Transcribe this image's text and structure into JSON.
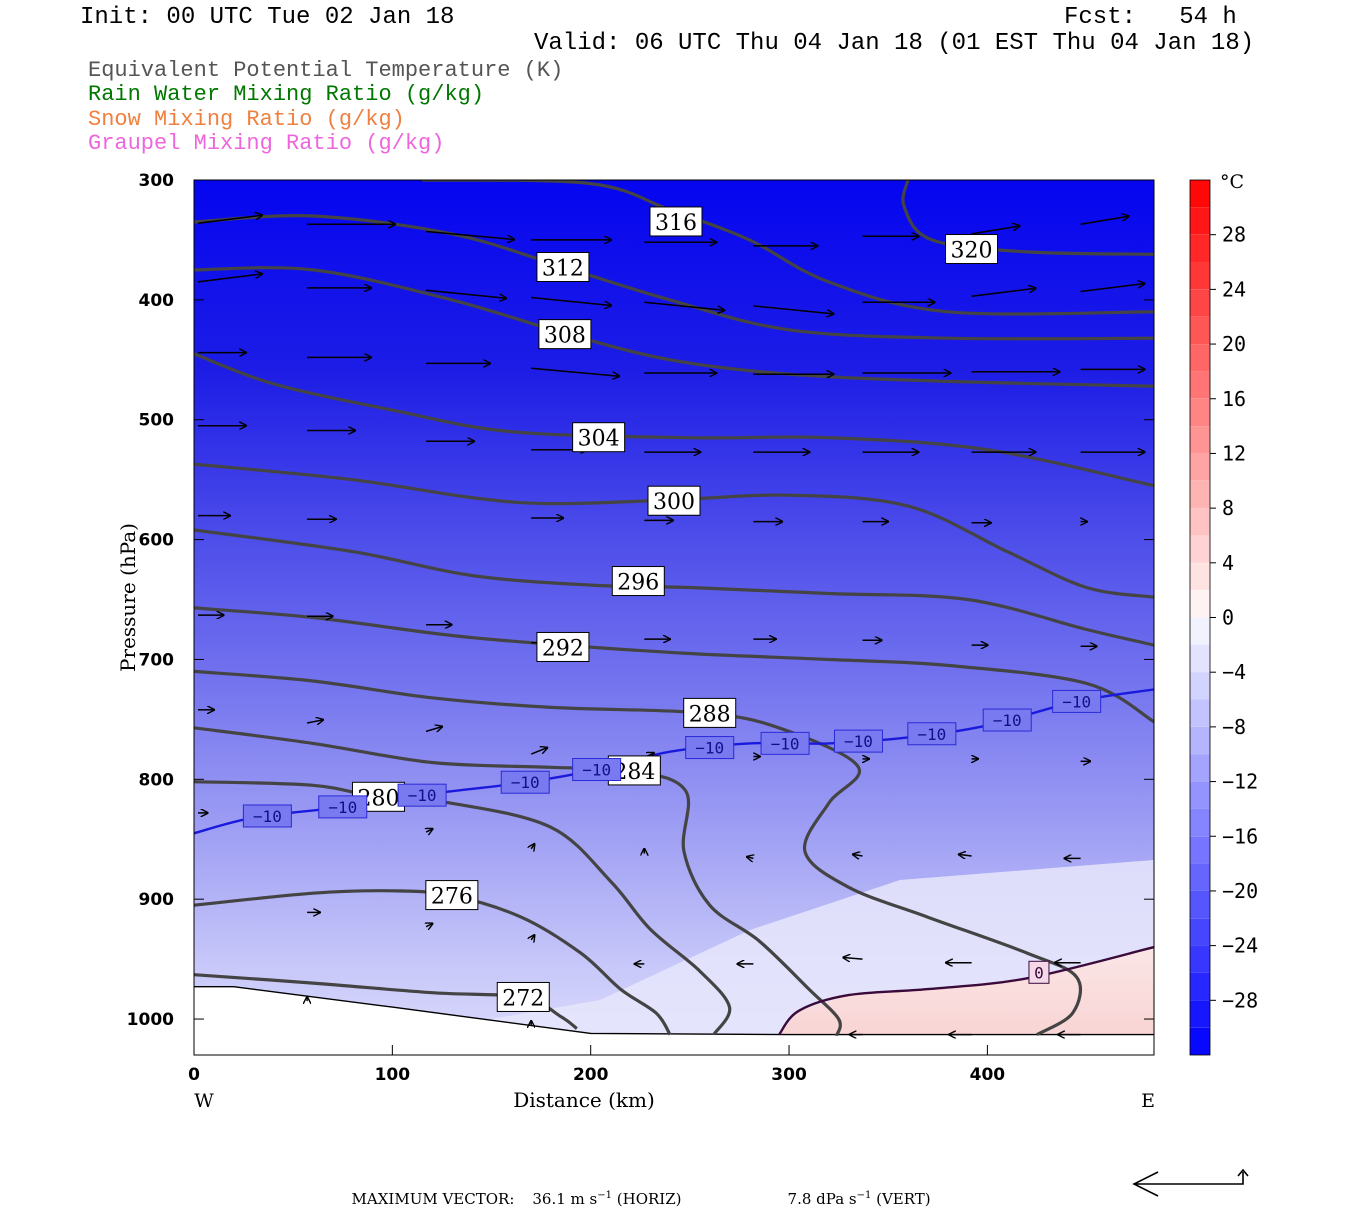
{
  "header": {
    "init": "Init: 00 UTC Tue 02 Jan 18",
    "fcst": "Fcst:   54 h",
    "valid": "Valid: 06 UTC Thu 04 Jan 18 (01 EST Thu 04 Jan 18)"
  },
  "fields": [
    {
      "label": "Equivalent Potential Temperature (K)",
      "color": "#555555"
    },
    {
      "label": "Rain Water Mixing Ratio (g/kg)",
      "color": "#007700"
    },
    {
      "label": "Snow Mixing Ratio (g/kg)",
      "color": "#f08040"
    },
    {
      "label": "Graupel Mixing Ratio (g/kg)",
      "color": "#ee66dd"
    }
  ],
  "chart_data": {
    "type": "cross-section",
    "xlabel": "Distance (km)",
    "ylabel": "Pressure (hPa)",
    "xlim": [
      0,
      484
    ],
    "ylim": [
      1030,
      300
    ],
    "x_ticks": [
      0,
      100,
      200,
      300,
      400
    ],
    "y_ticks": [
      300,
      400,
      500,
      600,
      700,
      800,
      900,
      1000
    ],
    "x_end_labels": {
      "left": "W",
      "right": "E"
    },
    "colorbar": {
      "unit": "°C",
      "tick_labels": [
        "28",
        "24",
        "20",
        "16",
        "12",
        "8",
        "4",
        "0",
        "−4",
        "−8",
        "−12",
        "−16",
        "−20",
        "−24",
        "−28"
      ],
      "tick_values": [
        28,
        24,
        20,
        16,
        12,
        8,
        4,
        0,
        -4,
        -8,
        -12,
        -16,
        -20,
        -24,
        -28
      ],
      "range": [
        -32,
        32
      ]
    },
    "theta_e_contours": [
      {
        "label": "316",
        "label_x": 243,
        "label_p": 335,
        "points": [
          [
            115,
            300
          ],
          [
            200,
            303
          ],
          [
            240,
            325
          ],
          [
            280,
            350
          ],
          [
            320,
            385
          ],
          [
            380,
            410
          ],
          [
            484,
            410
          ]
        ]
      },
      {
        "label": "320",
        "label_x": 392,
        "label_p": 358,
        "points": [
          [
            360,
            300
          ],
          [
            358,
            322
          ],
          [
            372,
            350
          ],
          [
            420,
            360
          ],
          [
            484,
            362
          ]
        ]
      },
      {
        "label": "312",
        "label_x": 186,
        "label_p": 373,
        "points": [
          [
            0,
            335
          ],
          [
            60,
            330
          ],
          [
            130,
            345
          ],
          [
            185,
            372
          ],
          [
            240,
            400
          ],
          [
            300,
            425
          ],
          [
            380,
            432
          ],
          [
            484,
            432
          ]
        ]
      },
      {
        "label": "308",
        "label_x": 187,
        "label_p": 429,
        "points": [
          [
            0,
            375
          ],
          [
            60,
            375
          ],
          [
            130,
            400
          ],
          [
            187,
            428
          ],
          [
            240,
            450
          ],
          [
            300,
            462
          ],
          [
            380,
            468
          ],
          [
            484,
            472
          ]
        ]
      },
      {
        "label": "304",
        "label_x": 204,
        "label_p": 515,
        "points": [
          [
            0,
            445
          ],
          [
            40,
            470
          ],
          [
            100,
            492
          ],
          [
            160,
            510
          ],
          [
            250,
            515
          ],
          [
            320,
            515
          ],
          [
            400,
            525
          ],
          [
            484,
            555
          ]
        ]
      },
      {
        "label": "300",
        "label_x": 242,
        "label_p": 568,
        "points": [
          [
            0,
            537
          ],
          [
            80,
            550
          ],
          [
            140,
            565
          ],
          [
            180,
            570
          ],
          [
            240,
            567
          ],
          [
            300,
            563
          ],
          [
            360,
            572
          ],
          [
            410,
            610
          ],
          [
            450,
            640
          ],
          [
            484,
            648
          ]
        ]
      },
      {
        "label": "296",
        "label_x": 224,
        "label_p": 635,
        "points": [
          [
            0,
            592
          ],
          [
            80,
            610
          ],
          [
            140,
            630
          ],
          [
            200,
            638
          ],
          [
            250,
            640
          ],
          [
            320,
            645
          ],
          [
            390,
            650
          ],
          [
            450,
            675
          ],
          [
            484,
            688
          ]
        ]
      },
      {
        "label": "292",
        "label_x": 186,
        "label_p": 690,
        "points": [
          [
            0,
            657
          ],
          [
            60,
            665
          ],
          [
            130,
            680
          ],
          [
            186,
            688
          ],
          [
            250,
            695
          ],
          [
            320,
            700
          ],
          [
            380,
            705
          ],
          [
            450,
            720
          ],
          [
            484,
            752
          ]
        ]
      },
      {
        "label": "288",
        "label_x": 260,
        "label_p": 745,
        "points": [
          [
            0,
            710
          ],
          [
            60,
            718
          ],
          [
            120,
            732
          ],
          [
            180,
            740
          ],
          [
            260,
            745
          ],
          [
            300,
            760
          ],
          [
            335,
            790
          ],
          [
            320,
            820
          ],
          [
            308,
            860
          ],
          [
            330,
            890
          ],
          [
            370,
            915
          ],
          [
            420,
            945
          ],
          [
            445,
            965
          ],
          [
            443,
            995
          ],
          [
            425,
            1013
          ]
        ]
      },
      {
        "label": "284",
        "label_x": 222,
        "label_p": 793,
        "points": [
          [
            0,
            757
          ],
          [
            60,
            770
          ],
          [
            120,
            786
          ],
          [
            180,
            790
          ],
          [
            222,
            793
          ],
          [
            248,
            810
          ],
          [
            247,
            860
          ],
          [
            260,
            905
          ],
          [
            285,
            935
          ],
          [
            310,
            975
          ],
          [
            325,
            1000
          ],
          [
            324,
            1014
          ]
        ]
      },
      {
        "label": "280",
        "label_x": 93,
        "label_p": 815,
        "points": [
          [
            0,
            802
          ],
          [
            60,
            805
          ],
          [
            93,
            815
          ],
          [
            130,
            820
          ],
          [
            180,
            840
          ],
          [
            210,
            885
          ],
          [
            230,
            925
          ],
          [
            255,
            960
          ],
          [
            270,
            990
          ],
          [
            262,
            1013
          ]
        ]
      },
      {
        "label": "276",
        "label_x": 130,
        "label_p": 897,
        "points": [
          [
            0,
            905
          ],
          [
            60,
            895
          ],
          [
            100,
            893
          ],
          [
            130,
            897
          ],
          [
            165,
            915
          ],
          [
            195,
            945
          ],
          [
            215,
            975
          ],
          [
            233,
            995
          ],
          [
            240,
            1013
          ]
        ]
      },
      {
        "label": "272",
        "label_x": 166,
        "label_p": 982,
        "points": [
          [
            0,
            963
          ],
          [
            60,
            970
          ],
          [
            120,
            978
          ],
          [
            166,
            982
          ],
          [
            185,
            998
          ],
          [
            193,
            1008
          ]
        ]
      }
    ],
    "isotherm_minus10": {
      "label": "−10",
      "points": [
        [
          0,
          845
        ],
        [
          30,
          832
        ],
        [
          75,
          823
        ],
        [
          120,
          812
        ],
        [
          165,
          803
        ],
        [
          200,
          793
        ],
        [
          240,
          777
        ],
        [
          280,
          770
        ],
        [
          320,
          770
        ],
        [
          360,
          765
        ],
        [
          400,
          755
        ],
        [
          445,
          735
        ],
        [
          484,
          725
        ]
      ],
      "label_x": [
        37,
        75,
        115,
        167,
        203,
        260,
        298,
        335,
        372,
        410,
        445
      ]
    },
    "isotherm_zero": {
      "label": "0",
      "label_x": 426,
      "label_p": 961,
      "points": [
        [
          295,
          1013
        ],
        [
          305,
          993
        ],
        [
          330,
          980
        ],
        [
          370,
          975
        ],
        [
          420,
          966
        ],
        [
          484,
          940
        ]
      ]
    },
    "wind_vectors": [
      {
        "x": 0,
        "p": 336,
        "u": 40,
        "w": 5
      },
      {
        "x": 55,
        "p": 337,
        "u": 55,
        "w": 0
      },
      {
        "x": 115,
        "p": 343,
        "u": 55,
        "w": -5
      },
      {
        "x": 168,
        "p": 350,
        "u": 50,
        "w": 0
      },
      {
        "x": 225,
        "p": 352,
        "u": 45,
        "w": 0
      },
      {
        "x": 280,
        "p": 355,
        "u": 40,
        "w": 0
      },
      {
        "x": 335,
        "p": 347,
        "u": 35,
        "w": 0
      },
      {
        "x": 390,
        "p": 345,
        "u": 30,
        "w": 5
      },
      {
        "x": 445,
        "p": 337,
        "u": 30,
        "w": 5
      },
      {
        "x": 0,
        "p": 385,
        "u": 40,
        "w": 5
      },
      {
        "x": 55,
        "p": 390,
        "u": 40,
        "w": 0
      },
      {
        "x": 115,
        "p": 392,
        "u": 50,
        "w": -5
      },
      {
        "x": 168,
        "p": 398,
        "u": 50,
        "w": -5
      },
      {
        "x": 225,
        "p": 402,
        "u": 50,
        "w": -5
      },
      {
        "x": 280,
        "p": 405,
        "u": 50,
        "w": -5
      },
      {
        "x": 335,
        "p": 402,
        "u": 45,
        "w": 0
      },
      {
        "x": 390,
        "p": 397,
        "u": 40,
        "w": 5
      },
      {
        "x": 445,
        "p": 393,
        "u": 40,
        "w": 5
      },
      {
        "x": 0,
        "p": 444,
        "u": 30,
        "w": 0
      },
      {
        "x": 55,
        "p": 448,
        "u": 40,
        "w": 0
      },
      {
        "x": 115,
        "p": 453,
        "u": 40,
        "w": 0
      },
      {
        "x": 168,
        "p": 457,
        "u": 55,
        "w": -5
      },
      {
        "x": 225,
        "p": 461,
        "u": 45,
        "w": 0
      },
      {
        "x": 280,
        "p": 462,
        "u": 50,
        "w": 0
      },
      {
        "x": 335,
        "p": 461,
        "u": 55,
        "w": 0
      },
      {
        "x": 390,
        "p": 460,
        "u": 55,
        "w": 0
      },
      {
        "x": 445,
        "p": 458,
        "u": 40,
        "w": 0
      },
      {
        "x": 0,
        "p": 505,
        "u": 30,
        "w": 0
      },
      {
        "x": 55,
        "p": 509,
        "u": 30,
        "w": 0
      },
      {
        "x": 115,
        "p": 518,
        "u": 30,
        "w": 0
      },
      {
        "x": 168,
        "p": 525,
        "u": 35,
        "w": 0
      },
      {
        "x": 225,
        "p": 527,
        "u": 35,
        "w": 0
      },
      {
        "x": 280,
        "p": 527,
        "u": 35,
        "w": 0
      },
      {
        "x": 335,
        "p": 527,
        "u": 35,
        "w": 0
      },
      {
        "x": 390,
        "p": 527,
        "u": 40,
        "w": 0
      },
      {
        "x": 445,
        "p": 527,
        "u": 40,
        "w": 0
      },
      {
        "x": 0,
        "p": 580,
        "u": 20,
        "w": 0
      },
      {
        "x": 55,
        "p": 583,
        "u": 18,
        "w": 0
      },
      {
        "x": 168,
        "p": 582,
        "u": 20,
        "w": 0
      },
      {
        "x": 225,
        "p": 584,
        "u": 18,
        "w": 0
      },
      {
        "x": 280,
        "p": 585,
        "u": 18,
        "w": 0
      },
      {
        "x": 335,
        "p": 585,
        "u": 16,
        "w": 0
      },
      {
        "x": 390,
        "p": 586,
        "u": 12,
        "w": 0
      },
      {
        "x": 445,
        "p": 585,
        "u": 4,
        "w": 0
      },
      {
        "x": 0,
        "p": 663,
        "u": 16,
        "w": 0
      },
      {
        "x": 55,
        "p": 664,
        "u": 16,
        "w": 0
      },
      {
        "x": 115,
        "p": 671,
        "u": 16,
        "w": 0
      },
      {
        "x": 168,
        "p": 686,
        "u": 16,
        "w": 0
      },
      {
        "x": 225,
        "p": 683,
        "u": 16,
        "w": 0
      },
      {
        "x": 280,
        "p": 683,
        "u": 14,
        "w": 0
      },
      {
        "x": 335,
        "p": 684,
        "u": 12,
        "w": 0
      },
      {
        "x": 390,
        "p": 688,
        "u": 10,
        "w": 0
      },
      {
        "x": 445,
        "p": 689,
        "u": 10,
        "w": 0
      },
      {
        "x": 0,
        "p": 742,
        "u": 10,
        "w": 0
      },
      {
        "x": 55,
        "p": 753,
        "u": 10,
        "w": 2
      },
      {
        "x": 115,
        "p": 760,
        "u": 10,
        "w": 3
      },
      {
        "x": 168,
        "p": 779,
        "u": 10,
        "w": 4
      },
      {
        "x": 225,
        "p": 782,
        "u": 6,
        "w": 3
      },
      {
        "x": 280,
        "p": 781,
        "u": 4,
        "w": 0
      },
      {
        "x": 335,
        "p": 783,
        "u": 4,
        "w": 0
      },
      {
        "x": 390,
        "p": 783,
        "u": 4,
        "w": 0
      },
      {
        "x": 445,
        "p": 785,
        "u": 6,
        "w": 0
      },
      {
        "x": 0,
        "p": 828,
        "u": 6,
        "w": 0
      },
      {
        "x": 115,
        "p": 844,
        "u": 4,
        "w": 2
      },
      {
        "x": 168,
        "p": 858,
        "u": 2,
        "w": 3
      },
      {
        "x": 225,
        "p": 862,
        "u": 0,
        "w": 3
      },
      {
        "x": 280,
        "p": 866,
        "u": -4,
        "w": 1
      },
      {
        "x": 335,
        "p": 864,
        "u": -6,
        "w": 1
      },
      {
        "x": 390,
        "p": 864,
        "u": -8,
        "w": 1
      },
      {
        "x": 445,
        "p": 866,
        "u": -10,
        "w": 0
      },
      {
        "x": 55,
        "p": 911,
        "u": 8,
        "w": 0
      },
      {
        "x": 115,
        "p": 923,
        "u": 4,
        "w": 2
      },
      {
        "x": 168,
        "p": 934,
        "u": 2,
        "w": 3
      },
      {
        "x": 225,
        "p": 954,
        "u": -6,
        "w": 0
      },
      {
        "x": 280,
        "p": 954,
        "u": -10,
        "w": 0
      },
      {
        "x": 335,
        "p": 950,
        "u": -12,
        "w": 1
      },
      {
        "x": 390,
        "p": 953,
        "u": -16,
        "w": 0
      },
      {
        "x": 445,
        "p": 953,
        "u": -16,
        "w": 0
      },
      {
        "x": 55,
        "p": 985,
        "u": 0,
        "w": 0
      },
      {
        "x": 168,
        "p": 1005,
        "u": 0,
        "w": 0
      },
      {
        "x": 335,
        "p": 1013,
        "u": -8,
        "w": 0
      },
      {
        "x": 390,
        "p": 1013,
        "u": -14,
        "w": 0
      },
      {
        "x": 445,
        "p": 1013,
        "u": -14,
        "w": 0
      }
    ],
    "terrain_surface_p": [
      [
        0,
        973
      ],
      [
        20,
        973
      ],
      [
        100,
        990
      ],
      [
        200,
        1012
      ],
      [
        300,
        1013
      ],
      [
        484,
        1013
      ]
    ]
  },
  "footer": {
    "max_vector_label": "MAXIMUM VECTOR:",
    "horiz_value": "36.1 m s",
    "horiz_unit": " (HORIZ)",
    "vert_value": "7.8 dPa s",
    "vert_unit": " (VERT)",
    "exponent": "−1"
  },
  "colors": {
    "contour": "#444444",
    "isotherm_minus10": "#1a1adc",
    "isotherm_zero": "#3a0a3a"
  }
}
